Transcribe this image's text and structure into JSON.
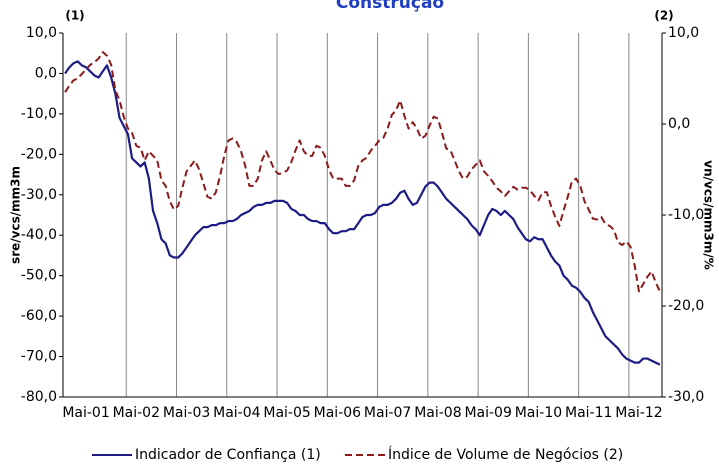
{
  "chart_data": {
    "type": "line",
    "title": "Construção",
    "y_axis_label": "sre/vcs/mm3m",
    "y2_axis_label": "vn/vcs/mm3m/%",
    "y_axis_note": "(1)",
    "y2_axis_note": "(2)",
    "categories": [
      null,
      null,
      null,
      null,
      null,
      "Mai-01",
      null,
      null,
      null,
      null,
      null,
      null,
      null,
      null,
      null,
      null,
      null,
      "Mai-02",
      null,
      null,
      null,
      null,
      null,
      null,
      null,
      null,
      null,
      null,
      null,
      "Mai-03",
      null,
      null,
      null,
      null,
      null,
      null,
      null,
      null,
      null,
      null,
      null,
      "Mai-04",
      null,
      null,
      null,
      null,
      null,
      null,
      null,
      null,
      null,
      null,
      null,
      "Mai-05",
      null,
      null,
      null,
      null,
      null,
      null,
      null,
      null,
      null,
      null,
      null,
      "Mai-06",
      null,
      null,
      null,
      null,
      null,
      null,
      null,
      null,
      null,
      null,
      null,
      "Mai-07",
      null,
      null,
      null,
      null,
      null,
      null,
      null,
      null,
      null,
      null,
      null,
      "Mai-08",
      null,
      null,
      null,
      null,
      null,
      null,
      null,
      null,
      null,
      null,
      null,
      "Mai-09",
      null,
      null,
      null,
      null,
      null,
      null,
      null,
      null,
      null,
      null,
      null,
      "Mai-10",
      null,
      null,
      null,
      null,
      null,
      null,
      null,
      null,
      null,
      null,
      null,
      "Mai-11",
      null,
      null,
      null,
      null,
      null,
      null,
      null,
      null,
      null,
      null,
      null,
      "Mai-12",
      null,
      null,
      null,
      null,
      null
    ],
    "series": [
      {
        "name": "Indicador de Confiança (1)",
        "color": "#1c1c84",
        "axis": "y",
        "dashed": false,
        "values": [
          0,
          1.5,
          2.5,
          3,
          2,
          1.5,
          0.5,
          -0.5,
          -1,
          0.5,
          2,
          -1,
          -5,
          -11,
          -13,
          -15,
          -21,
          -22,
          -23,
          -22,
          -26,
          -34,
          -37,
          -41,
          -42,
          -45,
          -45.5,
          -45.5,
          -44.5,
          -43,
          -41.5,
          -40,
          -39,
          -38,
          -38,
          -37.5,
          -37.5,
          -37,
          -37,
          -36.5,
          -36.5,
          -36,
          -35,
          -34.5,
          -34,
          -33,
          -32.5,
          -32.5,
          -32,
          -32,
          -31.5,
          -31.5,
          -31.5,
          -32,
          -33.5,
          -34,
          -35,
          -35,
          -36,
          -36.5,
          -36.5,
          -37,
          -37,
          -38.5,
          -39.5,
          -39.5,
          -39,
          -39,
          -38.5,
          -38.5,
          -37,
          -35.5,
          -35,
          -35,
          -34.5,
          -33,
          -32.5,
          -32.5,
          -32,
          -31,
          -29.5,
          -29,
          -31,
          -32.5,
          -32,
          -30,
          -28,
          -27,
          -27,
          -28,
          -29.5,
          -31,
          -32,
          -33,
          -34,
          -35,
          -36,
          -37.5,
          -38.5,
          -40,
          -37.5,
          -35,
          -33.5,
          -34,
          -35,
          -34,
          -35,
          -36,
          -38,
          -39.5,
          -41,
          -41.5,
          -40.5,
          -41,
          -41,
          -43,
          -45,
          -46.5,
          -47.5,
          -50,
          -51,
          -52.5,
          -53,
          -54,
          -55.5,
          -56.5,
          -59,
          -61,
          -63,
          -65,
          -66,
          -67,
          -68,
          -69.5,
          -70.5,
          -71,
          -71.5,
          -71.5,
          -70.5,
          -70.5,
          -71,
          -71.5,
          -72
        ]
      },
      {
        "name": "Índice de Volume de Negócios (2)",
        "color": "#8b1a1a",
        "axis": "y2",
        "dashed": true,
        "values": [
          3.5,
          4.2,
          4.8,
          5,
          5.5,
          6,
          6.5,
          6.8,
          7.2,
          7.9,
          7.5,
          6.5,
          3.7,
          2.6,
          0.8,
          -0.5,
          -1,
          -2.4,
          -2.6,
          -4,
          -3,
          -3.5,
          -4,
          -6.2,
          -6.8,
          -8.5,
          -9.4,
          -9,
          -7,
          -5.2,
          -4.6,
          -4,
          -5,
          -6.5,
          -8,
          -8.2,
          -7.5,
          -5.7,
          -3.5,
          -1.8,
          -1.6,
          -2,
          -3,
          -4.6,
          -6.8,
          -6.8,
          -6,
          -4,
          -3,
          -4,
          -5.1,
          -5.5,
          -5.4,
          -5.1,
          -4.2,
          -2.9,
          -1.8,
          -3,
          -3.5,
          -3.5,
          -2.4,
          -2.6,
          -3.5,
          -5,
          -6,
          -6,
          -6,
          -6.8,
          -6.8,
          -6.2,
          -4.6,
          -4,
          -3.7,
          -2.9,
          -2.4,
          -1.8,
          -1.5,
          -0.5,
          1,
          1.5,
          2.6,
          0.9,
          -0.5,
          0.2,
          -0.5,
          -1.6,
          -1.3,
          -0.2,
          0.8,
          0.6,
          -1,
          -2.7,
          -2.9,
          -4,
          -5.2,
          -6,
          -5.8,
          -5,
          -4.5,
          -4,
          -5.2,
          -5.7,
          -6.3,
          -7,
          -7.4,
          -7.9,
          -7.4,
          -6.9,
          -7.2,
          -7,
          -7,
          -7.3,
          -7.9,
          -8.4,
          -7.5,
          -7.5,
          -9,
          -10.2,
          -11.2,
          -9.5,
          -8,
          -6.3,
          -6,
          -6.8,
          -8.5,
          -9.4,
          -10.4,
          -10.5,
          -10.2,
          -11,
          -11.2,
          -11.6,
          -13,
          -13.3,
          -12.9,
          -13.5,
          -15.6,
          -18.4,
          -17.6,
          -16.8,
          -16.2,
          -17.4,
          -18.4
        ]
      }
    ],
    "ylim": [
      -80,
      10
    ],
    "yticks": [
      {
        "value": -80,
        "label": "-80,0"
      },
      {
        "value": -70,
        "label": "-70,0"
      },
      {
        "value": -60,
        "label": "-60,0"
      },
      {
        "value": -50,
        "label": "-50,0"
      },
      {
        "value": -40,
        "label": "-40,0"
      },
      {
        "value": -30,
        "label": "-30,0"
      },
      {
        "value": -20,
        "label": "-20,0"
      },
      {
        "value": -10,
        "label": "-10,0"
      },
      {
        "value": 0,
        "label": "0,0"
      },
      {
        "value": 10,
        "label": "10,0"
      }
    ],
    "y2lim": [
      -30,
      10
    ],
    "y2ticks": [
      {
        "value": -30,
        "label": "-30,0"
      },
      {
        "value": -20,
        "label": "-20,0"
      },
      {
        "value": -10,
        "label": "-10,0"
      },
      {
        "value": 0,
        "label": "0,0"
      },
      {
        "value": 10,
        "label": "10,0"
      }
    ],
    "grid": true,
    "legend": "bottom"
  }
}
